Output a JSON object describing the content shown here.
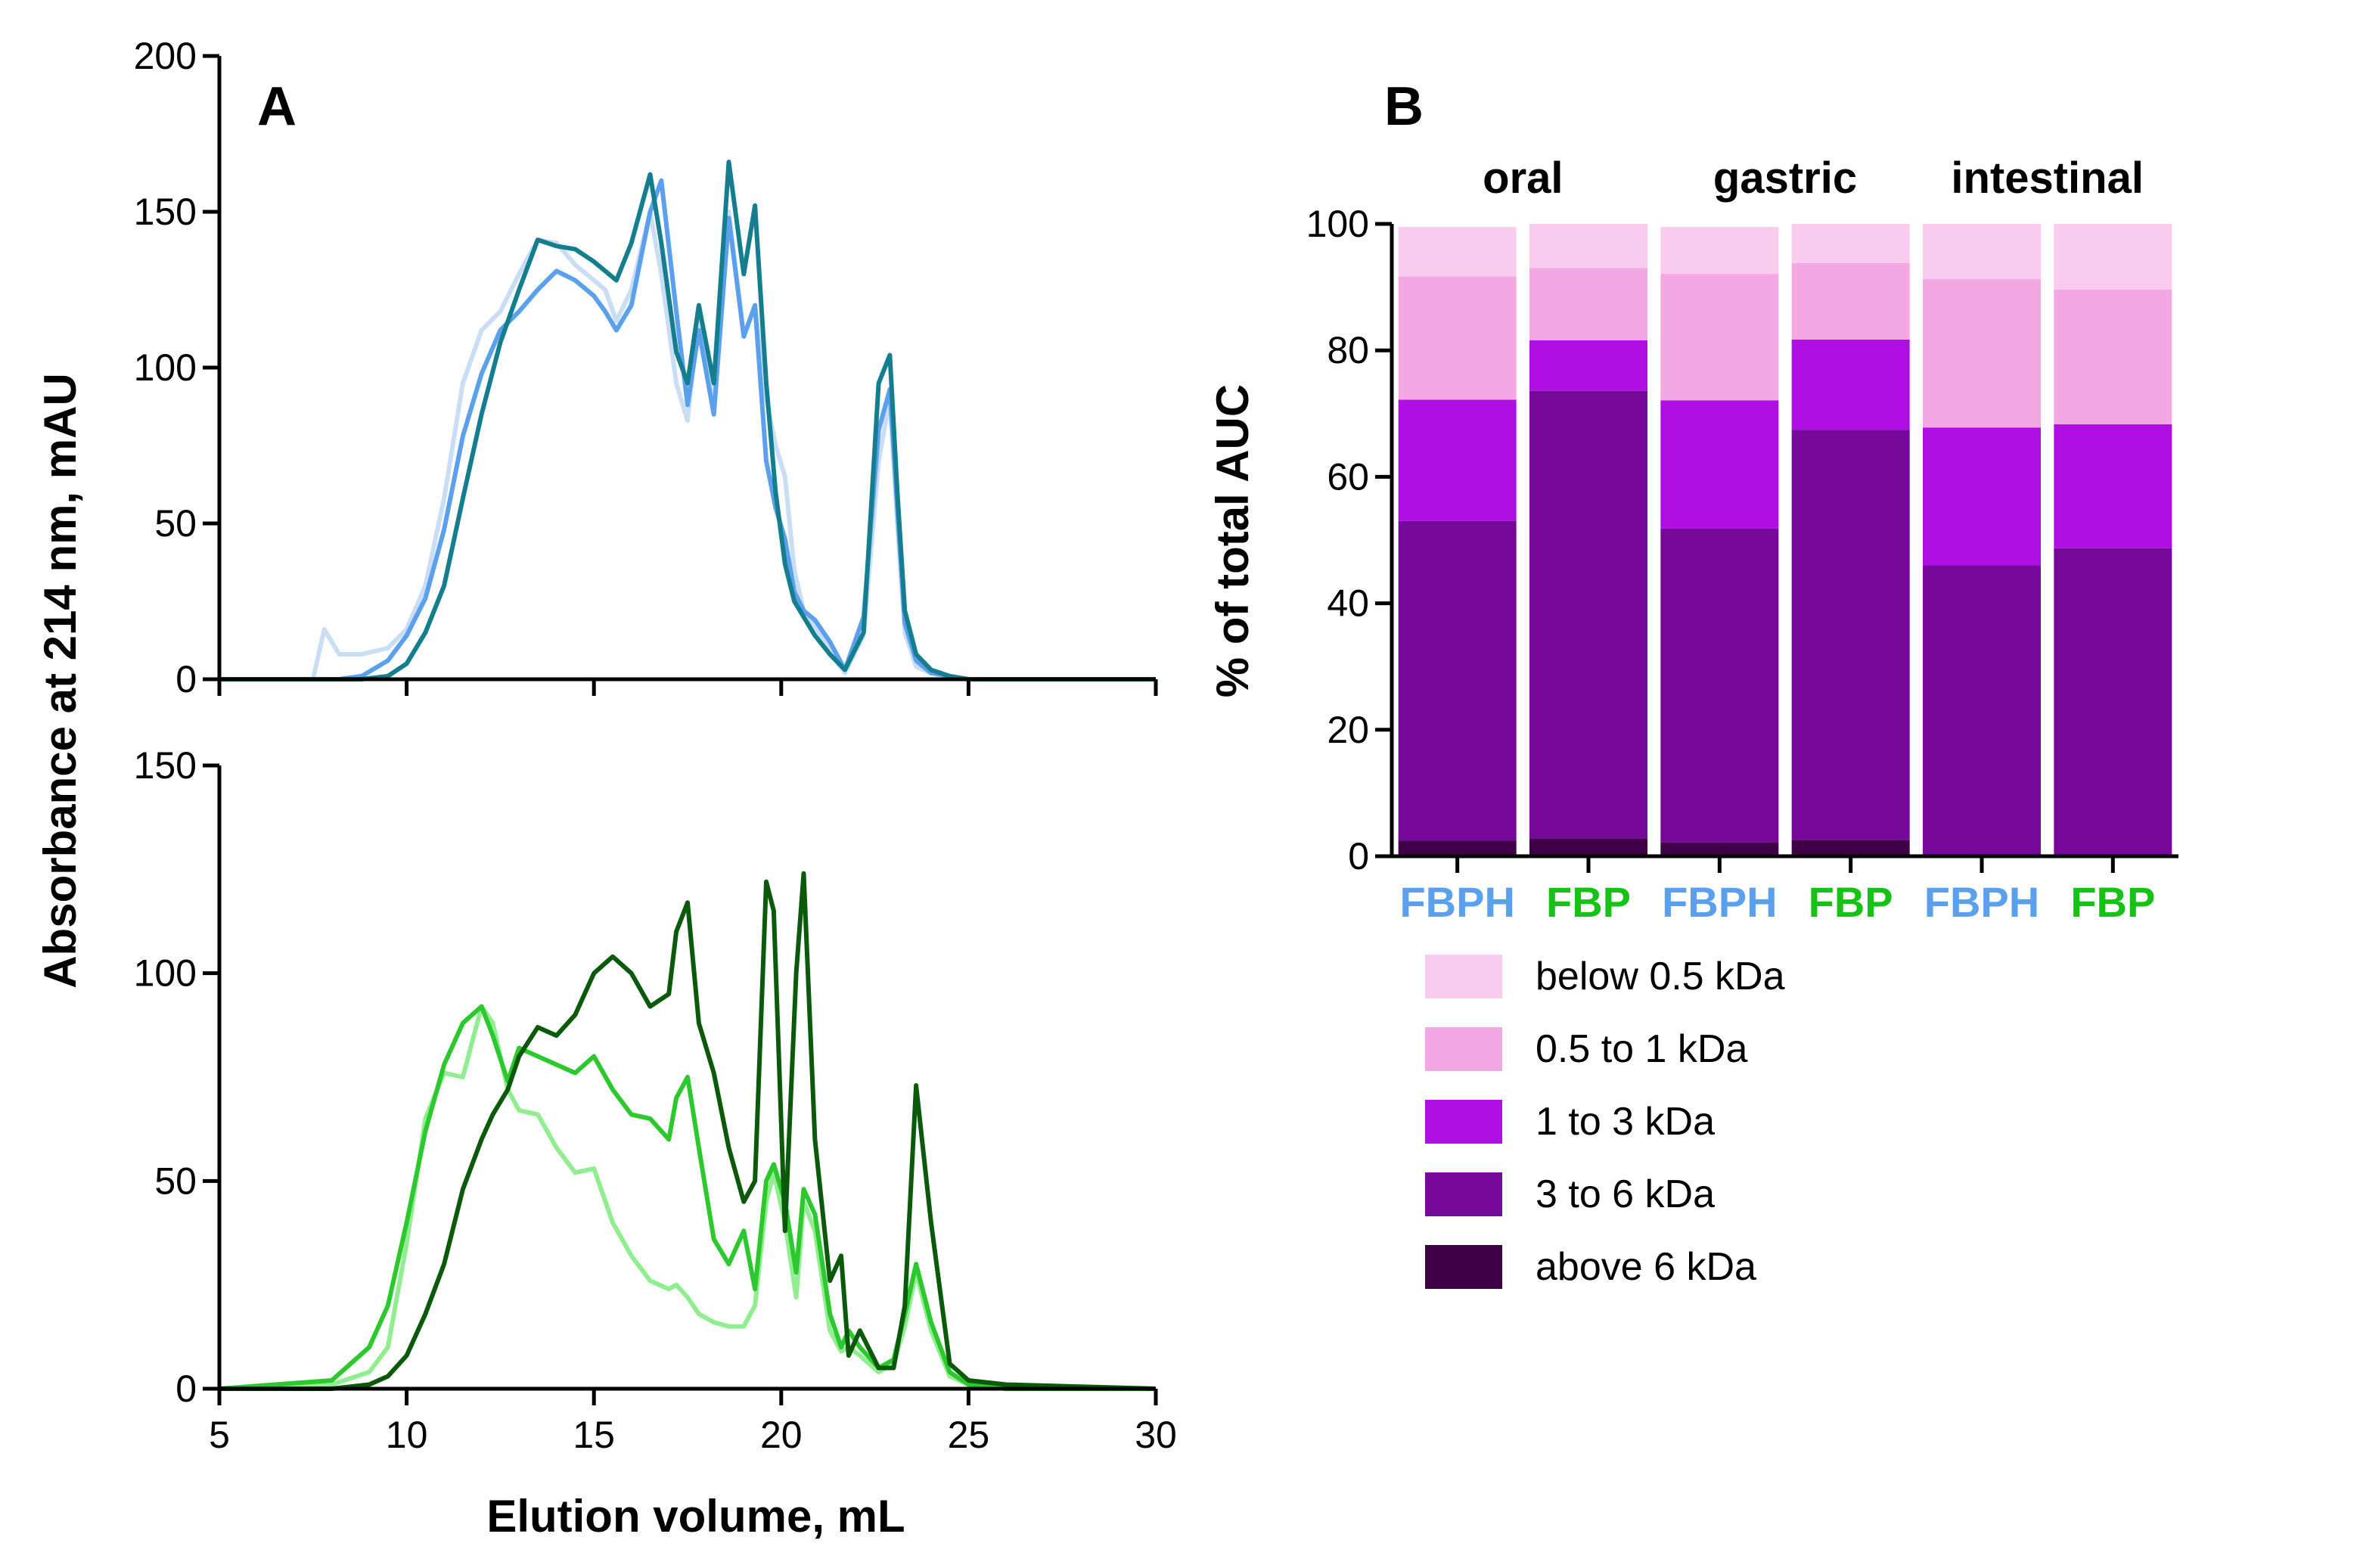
{
  "chart_data": [
    {
      "panel": "A",
      "subpanel": "top",
      "type": "line",
      "panel_label": "A",
      "ylabel": "Absorbance at 214 nm, mAU",
      "xlim": [
        5,
        30
      ],
      "ylim": [
        0,
        200
      ],
      "yticks": [
        "0",
        "50",
        "100",
        "150",
        "200"
      ],
      "x": [
        5,
        7.5,
        7.8,
        8.2,
        8.8,
        9.5,
        10,
        10.5,
        11,
        11.5,
        12,
        12.5,
        13,
        13.5,
        14,
        14.5,
        15,
        15.3,
        15.6,
        16,
        16.5,
        16.8,
        17.2,
        17.5,
        17.8,
        18.2,
        18.6,
        19,
        19.3,
        19.6,
        19.85,
        20.1,
        20.35,
        20.6,
        20.9,
        21.3,
        21.7,
        22.2,
        22.6,
        22.9,
        23.1,
        23.3,
        23.6,
        24,
        24.5,
        25,
        26,
        30
      ],
      "series": [
        {
          "name": "oral",
          "color": "#C9DDF5",
          "values": [
            0,
            0,
            16,
            8,
            8,
            10,
            16,
            30,
            58,
            95,
            112,
            118,
            130,
            141,
            140,
            133,
            128,
            125,
            115,
            125,
            150,
            130,
            95,
            83,
            118,
            90,
            150,
            110,
            120,
            90,
            75,
            65,
            35,
            22,
            17,
            9,
            2,
            14,
            70,
            90,
            50,
            15,
            4,
            2,
            1,
            0,
            0,
            0
          ]
        },
        {
          "name": "gastric",
          "color": "#5AA0EC",
          "values": [
            0,
            0,
            0,
            0,
            1,
            6,
            14,
            26,
            48,
            78,
            98,
            112,
            118,
            125,
            131,
            128,
            123,
            118,
            112,
            120,
            150,
            160,
            118,
            88,
            112,
            85,
            148,
            110,
            120,
            70,
            55,
            45,
            28,
            22,
            19,
            12,
            3,
            20,
            80,
            93,
            55,
            18,
            6,
            2,
            1,
            0,
            0,
            0
          ]
        },
        {
          "name": "intestinal",
          "color": "#147E8F",
          "values": [
            0,
            0,
            0,
            0,
            0,
            1,
            5,
            15,
            30,
            58,
            85,
            108,
            125,
            141,
            139,
            138,
            134,
            131,
            128,
            140,
            162,
            140,
            105,
            95,
            120,
            95,
            166,
            130,
            152,
            95,
            60,
            37,
            25,
            20,
            14,
            8,
            3,
            15,
            95,
            104,
            60,
            22,
            8,
            3,
            1,
            0,
            0,
            0
          ]
        }
      ]
    },
    {
      "panel": "A",
      "subpanel": "bottom",
      "type": "line",
      "xlabel": "Elution volume, mL",
      "xlim": [
        5,
        30
      ],
      "ylim": [
        0,
        150
      ],
      "xticks": [
        "5",
        "10",
        "15",
        "20",
        "25",
        "30"
      ],
      "yticks": [
        "0",
        "50",
        "100",
        "150"
      ],
      "x": [
        5,
        8,
        9,
        9.5,
        10,
        10.5,
        11,
        11.5,
        12,
        12.3,
        12.7,
        13,
        13.5,
        14,
        14.5,
        15,
        15.5,
        16,
        16.5,
        17,
        17.2,
        17.5,
        17.8,
        18.2,
        18.6,
        19,
        19.3,
        19.6,
        19.8,
        20.1,
        20.4,
        20.6,
        20.9,
        21.3,
        21.6,
        21.8,
        22.1,
        22.6,
        23,
        23.3,
        23.6,
        24,
        24.5,
        25,
        26,
        30
      ],
      "series": [
        {
          "name": "oral",
          "color": "#90EE90",
          "values": [
            0,
            1,
            4,
            10,
            35,
            65,
            76,
            75,
            92,
            88,
            72,
            67,
            66,
            58,
            52,
            53,
            40,
            32,
            26,
            24,
            25,
            22,
            18,
            16,
            15,
            15,
            20,
            45,
            52,
            40,
            22,
            45,
            38,
            14,
            9,
            10,
            8,
            4,
            6,
            15,
            28,
            14,
            3,
            1,
            0,
            0
          ]
        },
        {
          "name": "gastric",
          "color": "#2DC82D",
          "values": [
            0,
            2,
            10,
            20,
            40,
            62,
            78,
            88,
            92,
            85,
            74,
            82,
            80,
            78,
            76,
            80,
            72,
            66,
            65,
            60,
            70,
            75,
            58,
            36,
            30,
            38,
            24,
            50,
            54,
            45,
            28,
            48,
            42,
            18,
            10,
            14,
            10,
            5,
            7,
            18,
            30,
            16,
            4,
            1,
            0,
            0
          ]
        },
        {
          "name": "intestinal",
          "color": "#0B5A0B",
          "values": [
            0,
            0,
            1,
            3,
            8,
            18,
            30,
            48,
            60,
            66,
            72,
            80,
            87,
            85,
            90,
            100,
            104,
            100,
            92,
            95,
            110,
            117,
            88,
            76,
            58,
            45,
            50,
            122,
            115,
            38,
            100,
            124,
            60,
            26,
            32,
            8,
            14,
            5,
            5,
            20,
            73,
            40,
            6,
            2,
            1,
            0
          ]
        }
      ]
    },
    {
      "panel": "B",
      "type": "stacked-bar",
      "panel_label": "B",
      "ylabel": "% of total AUC",
      "ylim": [
        0,
        100
      ],
      "yticks": [
        "0",
        "20",
        "40",
        "60",
        "80",
        "100"
      ],
      "groups": [
        "oral",
        "gastric",
        "intestinal"
      ],
      "categories": [
        {
          "label": "FBPH",
          "group": "oral",
          "color": "#5AA0EC"
        },
        {
          "label": "FBP",
          "group": "oral",
          "color": "#17C217"
        },
        {
          "label": "FBPH",
          "group": "gastric",
          "color": "#5AA0EC"
        },
        {
          "label": "FBP",
          "group": "gastric",
          "color": "#17C217"
        },
        {
          "label": "FBPH",
          "group": "intestinal",
          "color": "#5AA0EC"
        },
        {
          "label": "FBP",
          "group": "intestinal",
          "color": "#17C217"
        }
      ],
      "series": [
        {
          "name": "above 6 kDa",
          "color": "#3F0047",
          "values": [
            2.5,
            2.8,
            2.2,
            2.6,
            0,
            0
          ]
        },
        {
          "name": "3 to 6 kDa",
          "color": "#76099A",
          "values": [
            50.5,
            70.8,
            49.6,
            64.8,
            46,
            48.7
          ]
        },
        {
          "name": "1 to 3 kDa",
          "color": "#B00FE3",
          "values": [
            19.2,
            8,
            20.3,
            14.3,
            21.8,
            19.6
          ]
        },
        {
          "name": "0.5 to 1 kDa",
          "color": "#F3A7E3",
          "values": [
            19.5,
            11.4,
            20,
            12.1,
            23.5,
            21.3
          ]
        },
        {
          "name": "below 0.5 kDa",
          "color": "#F9CBEE",
          "values": [
            7.8,
            7,
            7.4,
            6.2,
            8.7,
            10.4
          ]
        }
      ],
      "legend_order": [
        "below 0.5 kDa",
        "0.5 to 1 kDa",
        "1 to 3 kDa",
        "3 to 6 kDa",
        "above 6 kDa"
      ]
    }
  ]
}
